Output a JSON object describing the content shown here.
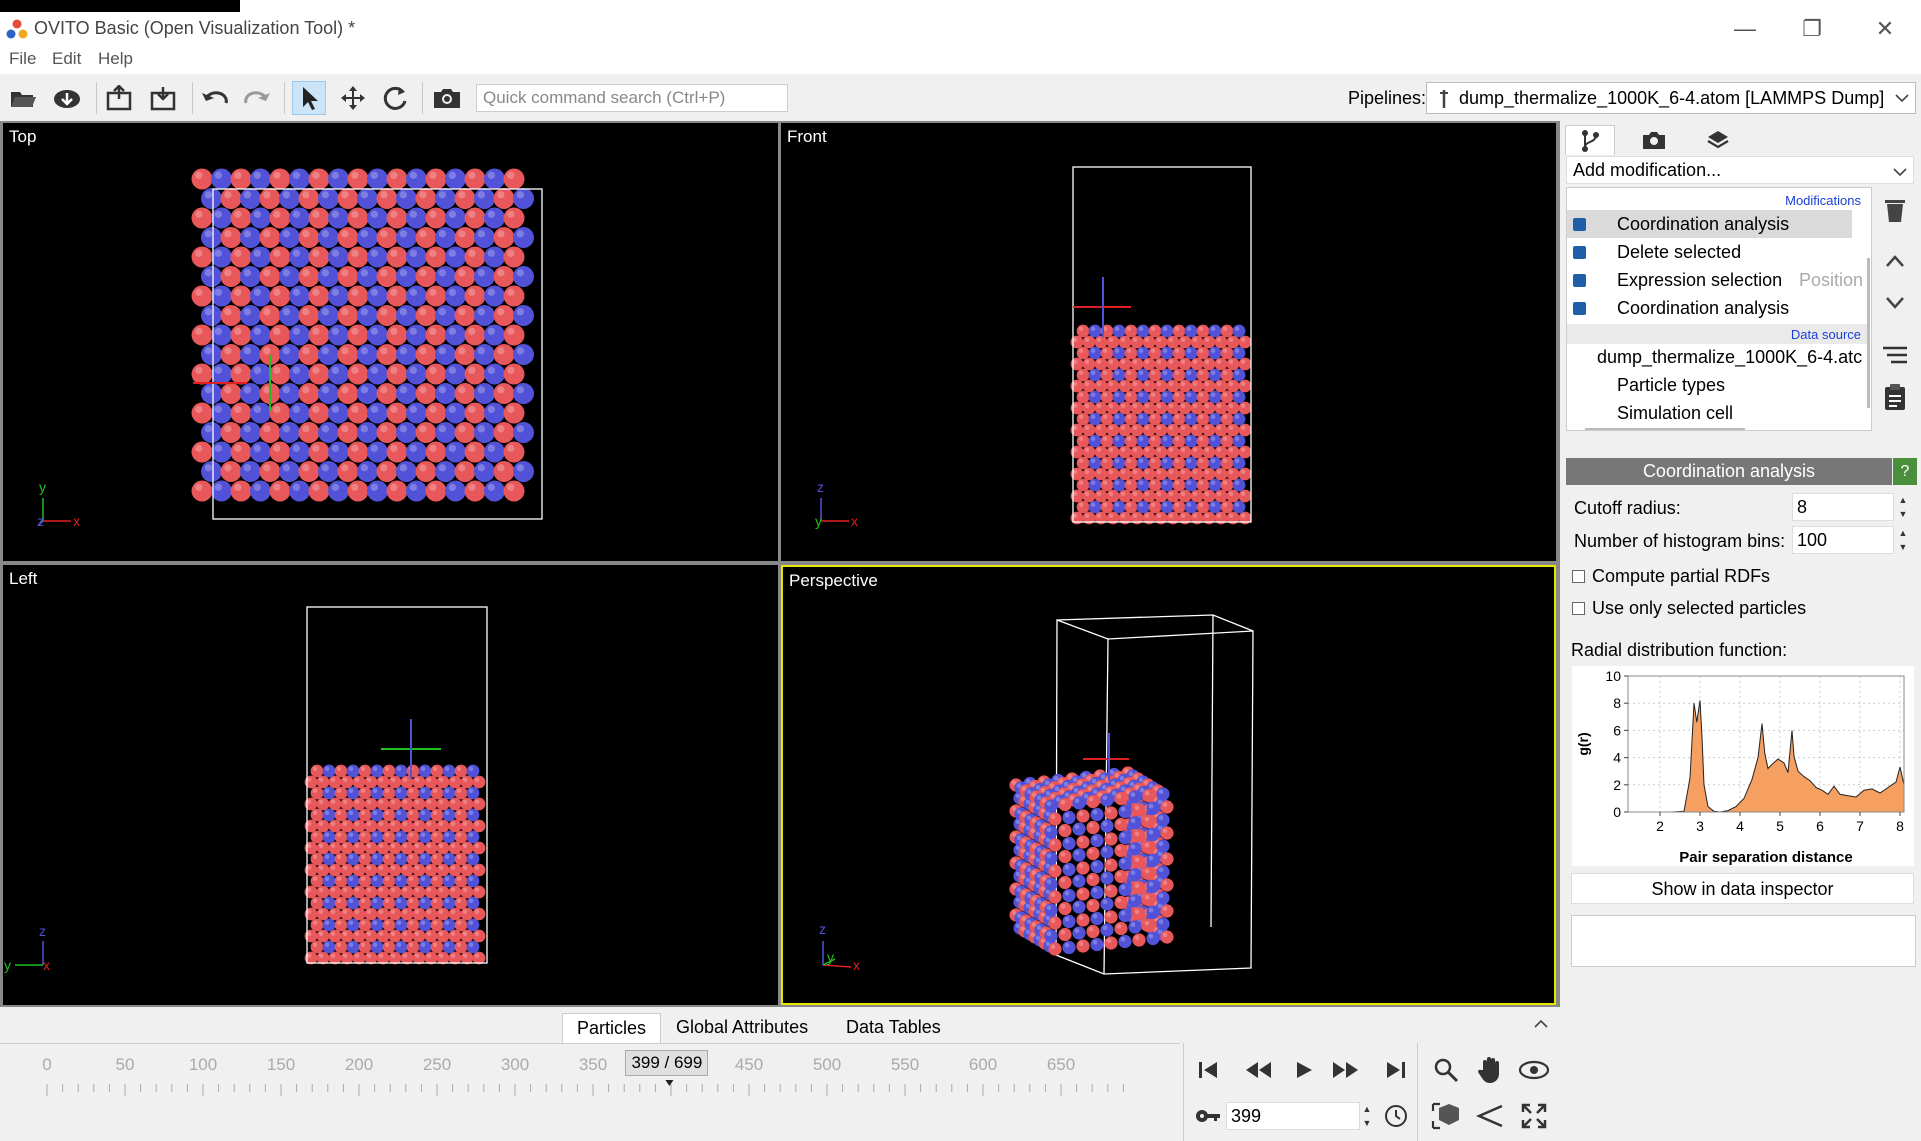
{
  "window": {
    "title": "OVITO Basic (Open Visualization Tool) *"
  },
  "menu": [
    "File",
    "Edit",
    "Help"
  ],
  "toolbar": {
    "search_placeholder": "Quick command search (Ctrl+P)",
    "pipelines_label": "Pipelines:",
    "pipeline_value": "dump_thermalize_1000K_6-4.atom [LAMMPS Dump]"
  },
  "viewports": {
    "top": {
      "title": "Top",
      "axes": [
        "y",
        "z",
        "x"
      ]
    },
    "front": {
      "title": "Front",
      "axes": [
        "z",
        "y",
        "x"
      ]
    },
    "left": {
      "title": "Left",
      "axes": [
        "z",
        "y",
        "x"
      ]
    },
    "perspective": {
      "title": "Perspective",
      "axes": [
        "z",
        "y",
        "x"
      ]
    }
  },
  "colors": {
    "atom_red": "#e8575a",
    "atom_blue": "#5252d8",
    "active_viewport": "#e6e600",
    "cell": "#ffffff",
    "rdf_fill": "#f5a060"
  },
  "panel": {
    "add_modification": "Add modification...",
    "sections": {
      "modifications": "Modifications",
      "data_source": "Data source"
    },
    "modifiers": [
      {
        "label": "Coordination analysis",
        "extra": ""
      },
      {
        "label": "Delete selected",
        "extra": ""
      },
      {
        "label": "Expression selection",
        "extra": "Position"
      },
      {
        "label": "Coordination analysis",
        "extra": ""
      }
    ],
    "data_source": {
      "file": "dump_thermalize_1000K_6-4.atc",
      "children": [
        "Particle types",
        "Simulation cell"
      ]
    },
    "editor": {
      "title": "Coordination analysis",
      "help": "?",
      "cutoff_label": "Cutoff radius:",
      "cutoff_value": "8",
      "bins_label": "Number of histogram bins:",
      "bins_value": "100",
      "partial_rdfs": "Compute partial RDFs",
      "only_selected": "Use only selected particles",
      "rdf_label": "Radial distribution function:",
      "show_inspector": "Show in data inspector"
    }
  },
  "chart_data": {
    "type": "area",
    "title": "Radial distribution function:",
    "xlabel": "Pair separation distance",
    "ylabel": "g(r)",
    "xlim": [
      1.2,
      8.1
    ],
    "ylim": [
      0,
      10
    ],
    "xticks": [
      2,
      3,
      4,
      5,
      6,
      7,
      8
    ],
    "yticks": [
      0,
      2,
      4,
      6,
      8,
      10
    ],
    "x": [
      1.2,
      2.3,
      2.6,
      2.75,
      2.85,
      2.92,
      3.0,
      3.05,
      3.1,
      3.2,
      3.35,
      3.5,
      3.7,
      3.9,
      4.1,
      4.3,
      4.45,
      4.55,
      4.62,
      4.7,
      4.8,
      4.95,
      5.1,
      5.2,
      5.3,
      5.35,
      5.45,
      5.6,
      5.75,
      5.9,
      6.05,
      6.2,
      6.35,
      6.5,
      6.7,
      6.9,
      7.1,
      7.3,
      7.5,
      7.7,
      7.9,
      8.0,
      8.1
    ],
    "y": [
      0,
      0,
      0.05,
      2.5,
      8.0,
      6.6,
      8.2,
      5.5,
      2.0,
      0.4,
      0.05,
      0,
      0.1,
      0.4,
      1.0,
      2.4,
      4.0,
      6.5,
      4.3,
      3.2,
      3.5,
      3.9,
      3.6,
      2.9,
      6.0,
      4.1,
      3.0,
      2.6,
      2.3,
      1.8,
      1.6,
      1.3,
      1.9,
      1.3,
      1.2,
      1.1,
      1.6,
      1.7,
      1.4,
      1.8,
      2.2,
      3.3,
      2.0
    ],
    "xtick_labels": [
      "2",
      "3",
      "4",
      "5",
      "6",
      "7",
      "8"
    ],
    "ytick_labels": [
      "0",
      "2",
      "4",
      "6",
      "8",
      "10"
    ]
  },
  "bottom_tabs": [
    "Particles",
    "Global Attributes",
    "Data Tables"
  ],
  "timeline": {
    "ticks": [
      "0",
      "50",
      "100",
      "150",
      "200",
      "250",
      "300",
      "350",
      "450",
      "500",
      "550",
      "600",
      "650"
    ],
    "current": "399 / 699",
    "current_frame": 399,
    "max_frame": 699
  },
  "animation": {
    "frame_value": "399"
  }
}
